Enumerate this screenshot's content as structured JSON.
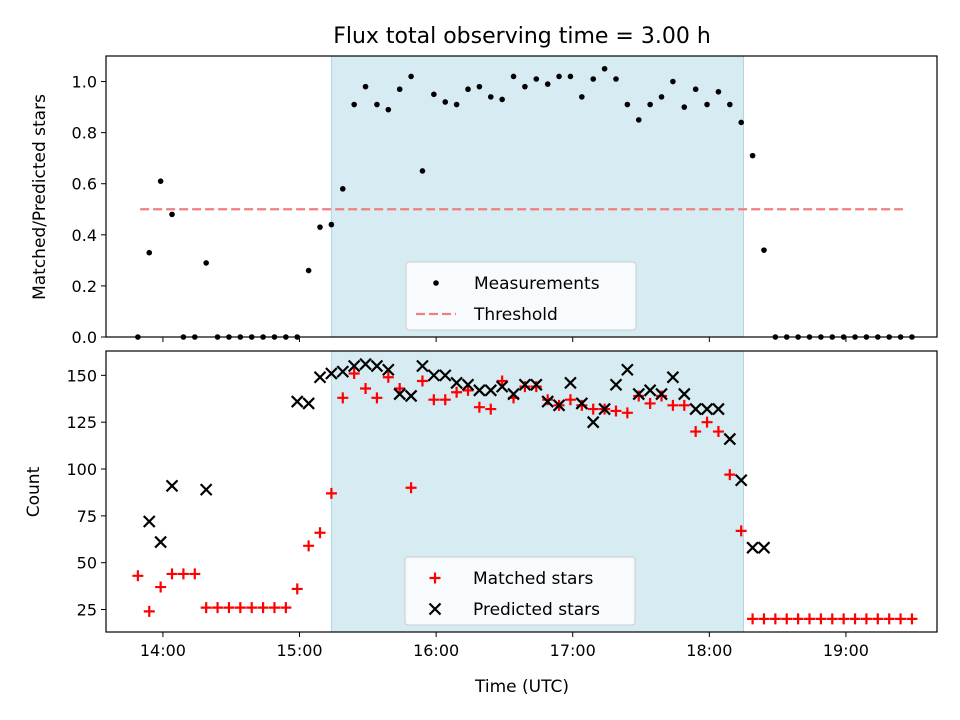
{
  "title": "Flux total observing time = 3.00 h",
  "chart_data": [
    {
      "type": "scatter",
      "title": "Flux total observing time = 3.00 h",
      "xlabel": "",
      "ylabel": "Matched/Predicted stars",
      "xlim": [
        "13:35",
        "19:40"
      ],
      "ylim": [
        0,
        1.1
      ],
      "yticks": [
        "0.0",
        "0.2",
        "0.4",
        "0.6",
        "0.8",
        "1.0"
      ],
      "yticks_values": [
        0,
        0.2,
        0.4,
        0.6,
        0.8,
        1.0
      ],
      "shaded_interval": [
        "15:14",
        "18:15"
      ],
      "threshold": {
        "name": "Threshold",
        "y": 0.5,
        "x_start": "13:50",
        "x_end": "19:25",
        "color": "#f07f7f"
      },
      "legend_position": "lower center",
      "series": [
        {
          "name": "Measurements",
          "marker": "dot",
          "color": "#000000",
          "x": [
            "13:49",
            "13:54",
            "13:59",
            "14:04",
            "14:09",
            "14:14",
            "14:19",
            "14:24",
            "14:29",
            "14:34",
            "14:39",
            "14:44",
            "14:49",
            "14:54",
            "14:59",
            "15:04",
            "15:09",
            "15:14",
            "15:19",
            "15:24",
            "15:29",
            "15:34",
            "15:39",
            "15:44",
            "15:49",
            "15:54",
            "15:59",
            "16:04",
            "16:09",
            "16:14",
            "16:19",
            "16:24",
            "16:29",
            "16:34",
            "16:39",
            "16:44",
            "16:49",
            "16:54",
            "16:59",
            "17:04",
            "17:09",
            "17:14",
            "17:19",
            "17:24",
            "17:29",
            "17:34",
            "17:39",
            "17:44",
            "17:49",
            "17:54",
            "17:59",
            "18:04",
            "18:09",
            "18:14",
            "18:19",
            "18:24",
            "18:29",
            "18:34",
            "18:39",
            "18:44",
            "18:49",
            "18:54",
            "18:59",
            "19:04",
            "19:09",
            "19:14",
            "19:19",
            "19:24",
            "19:29"
          ],
          "y": [
            0,
            0.33,
            0.61,
            0.48,
            0,
            0,
            0.29,
            0,
            0,
            0,
            0,
            0,
            0,
            0,
            0,
            0.26,
            0.43,
            0.44,
            0.58,
            0.91,
            0.98,
            0.91,
            0.89,
            0.97,
            1.02,
            0.65,
            0.95,
            0.92,
            0.91,
            0.97,
            0.98,
            0.94,
            0.93,
            1.02,
            0.98,
            1.01,
            0.99,
            1.02,
            1.02,
            0.94,
            1.01,
            1.05,
            1.01,
            0.91,
            0.85,
            0.91,
            0.94,
            1.0,
            0.9,
            0.97,
            0.91,
            0.96,
            0.91,
            0.84,
            0.71,
            0.34,
            0,
            0,
            0,
            0,
            0,
            0,
            0,
            0,
            0,
            0,
            0,
            0,
            0
          ]
        }
      ],
      "legend": [
        "Measurements",
        "Threshold"
      ]
    },
    {
      "type": "scatter",
      "title": "",
      "xlabel": "Time (UTC)",
      "ylabel": "Count",
      "xlim": [
        "13:35",
        "19:40"
      ],
      "xticks": [
        "14:00",
        "15:00",
        "16:00",
        "17:00",
        "18:00",
        "19:00"
      ],
      "ylim": [
        13,
        163
      ],
      "yticks": [
        "25",
        "50",
        "75",
        "100",
        "125",
        "150"
      ],
      "yticks_values": [
        25,
        50,
        75,
        100,
        125,
        150
      ],
      "shaded_interval": [
        "15:14",
        "18:15"
      ],
      "legend_position": "lower center",
      "series": [
        {
          "name": "Matched stars",
          "marker": "plus",
          "color": "#ff0000",
          "x": [
            "13:49",
            "13:54",
            "13:59",
            "14:04",
            "14:09",
            "14:14",
            "14:19",
            "14:24",
            "14:29",
            "14:34",
            "14:39",
            "14:44",
            "14:49",
            "14:54",
            "14:59",
            "15:04",
            "15:09",
            "15:14",
            "15:19",
            "15:24",
            "15:29",
            "15:34",
            "15:39",
            "15:44",
            "15:49",
            "15:54",
            "15:59",
            "16:04",
            "16:09",
            "16:14",
            "16:19",
            "16:24",
            "16:29",
            "16:34",
            "16:39",
            "16:44",
            "16:49",
            "16:54",
            "16:59",
            "17:04",
            "17:09",
            "17:14",
            "17:19",
            "17:24",
            "17:29",
            "17:34",
            "17:39",
            "17:44",
            "17:49",
            "17:54",
            "17:59",
            "18:04",
            "18:09",
            "18:14",
            "18:19",
            "18:24",
            "18:29",
            "18:34",
            "18:39",
            "18:44",
            "18:49",
            "18:54",
            "18:59",
            "19:04",
            "19:09",
            "19:14",
            "19:19",
            "19:24",
            "19:29"
          ],
          "y": [
            43,
            24,
            37,
            44,
            44,
            44,
            26,
            26,
            26,
            26,
            26,
            26,
            26,
            26,
            36,
            59,
            66,
            87,
            138,
            151,
            143,
            138,
            149,
            143,
            90,
            147,
            137,
            137,
            141,
            142,
            133,
            132,
            147,
            138,
            144,
            144,
            137,
            134,
            137,
            134,
            132,
            132,
            131,
            130,
            139,
            135,
            139,
            134,
            134,
            120,
            125,
            120,
            97,
            67,
            20,
            20,
            20,
            20,
            20,
            20,
            20,
            20,
            20,
            20,
            20,
            20,
            20,
            20,
            20
          ]
        },
        {
          "name": "Predicted stars",
          "marker": "x",
          "color": "#000000",
          "x": [
            "13:54",
            "13:59",
            "14:04",
            "14:19",
            "14:59",
            "15:04",
            "15:09",
            "15:14",
            "15:19",
            "15:24",
            "15:29",
            "15:34",
            "15:39",
            "15:44",
            "15:49",
            "15:54",
            "15:59",
            "16:04",
            "16:09",
            "16:14",
            "16:19",
            "16:24",
            "16:29",
            "16:34",
            "16:39",
            "16:44",
            "16:49",
            "16:54",
            "16:59",
            "17:04",
            "17:09",
            "17:14",
            "17:19",
            "17:24",
            "17:29",
            "17:34",
            "17:39",
            "17:44",
            "17:49",
            "17:54",
            "17:59",
            "18:04",
            "18:09",
            "18:14",
            "18:19",
            "18:24"
          ],
          "y": [
            72,
            61,
            91,
            89,
            136,
            135,
            149,
            151,
            152,
            155,
            156,
            155,
            153,
            140,
            139,
            155,
            150,
            150,
            146,
            145,
            142,
            142,
            144,
            140,
            145,
            145,
            136,
            134,
            146,
            135,
            125,
            132,
            145,
            153,
            140,
            142,
            140,
            149,
            140,
            132,
            132,
            132,
            116,
            94,
            58,
            58
          ]
        }
      ],
      "legend": [
        "Matched stars",
        "Predicted stars"
      ]
    }
  ]
}
